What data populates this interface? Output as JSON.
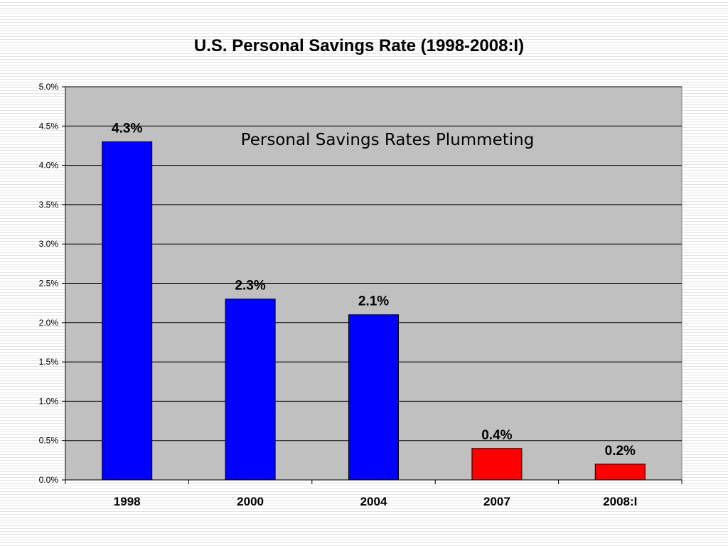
{
  "chart_data": {
    "type": "bar",
    "title": "U.S. Personal Savings Rate (1998-2008:I)",
    "annotation": "Personal Savings Rates Plummeting",
    "categories": [
      "1998",
      "2000",
      "2004",
      "2007",
      "2008:I"
    ],
    "values": [
      4.3,
      2.3,
      2.1,
      0.4,
      0.2
    ],
    "data_labels": [
      "4.3%",
      "2.3%",
      "2.1%",
      "0.4%",
      "0.2%"
    ],
    "bar_colors": [
      "#0000ff",
      "#0000ff",
      "#0000ff",
      "#ff0000",
      "#ff0000"
    ],
    "ylim": [
      0,
      5.0
    ],
    "y_ticks": [
      "0.0%",
      "0.5%",
      "1.0%",
      "1.5%",
      "2.0%",
      "2.5%",
      "3.0%",
      "3.5%",
      "4.0%",
      "4.5%",
      "5.0%"
    ],
    "xlabel": "",
    "ylabel": "",
    "grid": true,
    "colors": {
      "plot_background": "#c0c0c0",
      "gridline": "#000000"
    }
  }
}
